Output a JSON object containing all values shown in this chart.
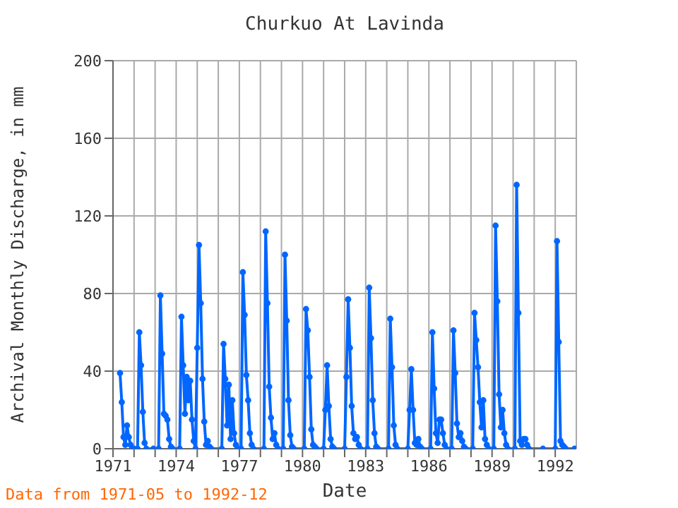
{
  "chart_data": {
    "type": "line",
    "title": "Churkuo At Lavinda",
    "xlabel": "Date",
    "ylabel": "Archival Monthly Discharge, in mm",
    "annotations": [
      "Data from 1971-05 to 1992-12"
    ],
    "x": [
      "1971-05",
      "1971-06",
      "1971-07",
      "1971-08",
      "1971-09",
      "1971-10",
      "1971-11",
      "1971-12",
      "1972-01",
      "1972-03",
      "1972-04",
      "1972-05",
      "1972-06",
      "1972-07",
      "1972-08",
      "1972-12",
      "1973-03",
      "1973-04",
      "1973-05",
      "1973-06",
      "1973-07",
      "1973-08",
      "1973-09",
      "1973-10",
      "1973-11",
      "1974-03",
      "1974-04",
      "1974-05",
      "1974-06",
      "1974-07",
      "1974-08",
      "1974-09",
      "1974-10",
      "1974-11",
      "1974-12",
      "1975-01",
      "1975-02",
      "1975-03",
      "1975-04",
      "1975-05",
      "1975-06",
      "1975-07",
      "1975-08",
      "1975-09",
      "1976-03",
      "1976-04",
      "1976-05",
      "1976-06",
      "1976-07",
      "1976-08",
      "1976-09",
      "1976-10",
      "1976-11",
      "1976-12",
      "1977-02",
      "1977-03",
      "1977-04",
      "1977-05",
      "1977-06",
      "1977-07",
      "1977-08",
      "1977-09",
      "1978-03",
      "1978-04",
      "1978-05",
      "1978-06",
      "1978-07",
      "1978-08",
      "1978-09",
      "1978-10",
      "1978-11",
      "1979-02",
      "1979-03",
      "1979-04",
      "1979-05",
      "1979-06",
      "1979-07",
      "1979-08",
      "1980-02",
      "1980-03",
      "1980-04",
      "1980-05",
      "1980-06",
      "1980-07",
      "1980-08",
      "1980-09",
      "1981-01",
      "1981-02",
      "1981-03",
      "1981-04",
      "1981-05",
      "1981-06",
      "1981-07",
      "1982-01",
      "1982-02",
      "1982-03",
      "1982-04",
      "1982-05",
      "1982-06",
      "1982-07",
      "1982-08",
      "1982-09",
      "1982-10",
      "1983-02",
      "1983-03",
      "1983-04",
      "1983-05",
      "1983-06",
      "1983-07",
      "1983-08",
      "1984-02",
      "1984-03",
      "1984-04",
      "1984-05",
      "1984-06",
      "1984-07",
      "1985-01",
      "1985-02",
      "1985-03",
      "1985-04",
      "1985-05",
      "1985-06",
      "1985-07",
      "1985-08",
      "1985-09",
      "1986-02",
      "1986-03",
      "1986-04",
      "1986-05",
      "1986-06",
      "1986-07",
      "1986-08",
      "1986-09",
      "1986-10",
      "1986-11",
      "1987-02",
      "1987-03",
      "1987-04",
      "1987-05",
      "1987-06",
      "1987-07",
      "1987-08",
      "1987-09",
      "1987-10",
      "1988-02",
      "1988-03",
      "1988-04",
      "1988-05",
      "1988-06",
      "1988-07",
      "1988-08",
      "1988-09",
      "1988-10",
      "1988-11",
      "1989-02",
      "1989-03",
      "1989-04",
      "1989-05",
      "1989-06",
      "1989-07",
      "1989-08",
      "1989-09",
      "1989-10",
      "1990-02",
      "1990-03",
      "1990-04",
      "1990-05",
      "1990-06",
      "1990-07",
      "1990-08",
      "1990-09",
      "1990-10",
      "1991-06",
      "1992-01",
      "1992-02",
      "1992-03",
      "1992-04",
      "1992-05",
      "1992-06",
      "1992-07",
      "1992-12"
    ],
    "series": [
      {
        "color": "#0066ff",
        "values": [
          39,
          24,
          6,
          2,
          12,
          6,
          2,
          0,
          0,
          0,
          60,
          43,
          19,
          3,
          0,
          0,
          0,
          79,
          49,
          18,
          17,
          15,
          5,
          1,
          0,
          0,
          68,
          43,
          18,
          37,
          25,
          35,
          15,
          4,
          0,
          52,
          105,
          75,
          36,
          14,
          2,
          4,
          1,
          0,
          0,
          54,
          36,
          12,
          33,
          5,
          25,
          8,
          2,
          0,
          0,
          91,
          69,
          38,
          25,
          8,
          2,
          0,
          0,
          112,
          75,
          32,
          16,
          5,
          8,
          2,
          0,
          0,
          100,
          66,
          25,
          7,
          1,
          0,
          0,
          72,
          61,
          37,
          10,
          2,
          1,
          0,
          0,
          20,
          43,
          22,
          5,
          1,
          0,
          0,
          37,
          77,
          52,
          22,
          8,
          5,
          6,
          2,
          0,
          0,
          83,
          57,
          25,
          8,
          1,
          0,
          0,
          67,
          42,
          12,
          2,
          0,
          0,
          20,
          41,
          20,
          3,
          2,
          5,
          1,
          0,
          0,
          60,
          31,
          8,
          3,
          15,
          15,
          8,
          2,
          0,
          0,
          61,
          39,
          13,
          6,
          8,
          4,
          1,
          0,
          0,
          70,
          56,
          42,
          24,
          11,
          25,
          5,
          2,
          0,
          0,
          115,
          76,
          28,
          11,
          20,
          8,
          2,
          0,
          0,
          136,
          70,
          4,
          2,
          5,
          5,
          2,
          0,
          0,
          0,
          107,
          55,
          4,
          2,
          1,
          0,
          0
        ]
      }
    ],
    "xlim": [
      "1971",
      "1993"
    ],
    "xticks": [
      {
        "value": "1971",
        "label": "1971"
      },
      {
        "value": "1972",
        "label": null
      },
      {
        "value": "1973",
        "label": null
      },
      {
        "value": "1974",
        "label": "1974"
      },
      {
        "value": "1975",
        "label": null
      },
      {
        "value": "1976",
        "label": null
      },
      {
        "value": "1977",
        "label": "1977"
      },
      {
        "value": "1978",
        "label": null
      },
      {
        "value": "1979",
        "label": null
      },
      {
        "value": "1980",
        "label": "1980"
      },
      {
        "value": "1981",
        "label": null
      },
      {
        "value": "1982",
        "label": null
      },
      {
        "value": "1983",
        "label": "1983"
      },
      {
        "value": "1984",
        "label": null
      },
      {
        "value": "1985",
        "label": null
      },
      {
        "value": "1986",
        "label": "1986"
      },
      {
        "value": "1987",
        "label": null
      },
      {
        "value": "1988",
        "label": null
      },
      {
        "value": "1989",
        "label": "1989"
      },
      {
        "value": "1990",
        "label": null
      },
      {
        "value": "1991",
        "label": null
      },
      {
        "value": "1992",
        "label": "1992"
      }
    ],
    "ylim": [
      0,
      200
    ],
    "yticks": [
      0,
      40,
      80,
      120,
      160,
      200
    ],
    "grid": true,
    "marker": "circle",
    "line_style": "solid"
  }
}
